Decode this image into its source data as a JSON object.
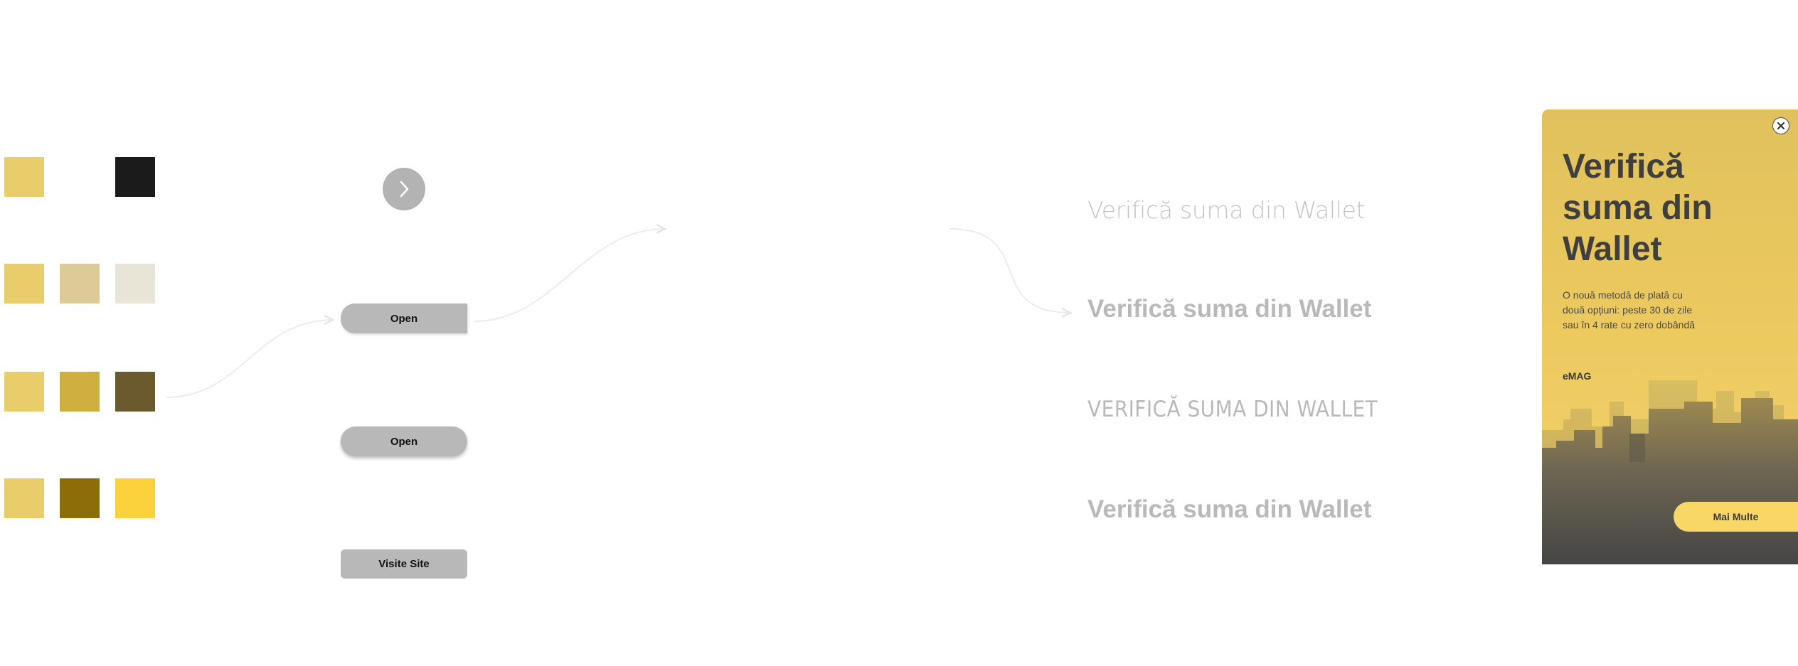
{
  "palette": {
    "row1": [
      "#e9cd6b",
      "#1b1b1b"
    ],
    "row2": [
      "#e9cd6b",
      "#dccb97",
      "#e9e5d6"
    ],
    "row3": [
      "#e9cd6b",
      "#cfaf3f",
      "#6b5a2e"
    ],
    "row4": [
      "#e9cd6b",
      "#8c6d08",
      "#fbd23c"
    ]
  },
  "buttons": {
    "arrow_icon": "chevron-right-icon",
    "open_1": "Open",
    "open_2": "Open",
    "visit": "Visite Site"
  },
  "typography": {
    "sample_1": "Verifică suma din Wallet",
    "sample_2": "Verifică suma din Wallet",
    "sample_3": "VERIFICĂ SUMA DIN WALLET",
    "sample_4": "Verifică suma din Wallet"
  },
  "card": {
    "title": "Verifică suma din Wallet",
    "description": "O nouă metodă de plată cu două opțiuni: peste 30 de zile sau în 4 rate cu zero dobândă",
    "brand": "eMAG",
    "cta": "Mai Multe",
    "close_icon": "close-icon",
    "accent": "#f9d766",
    "background": "#ecc95f"
  }
}
